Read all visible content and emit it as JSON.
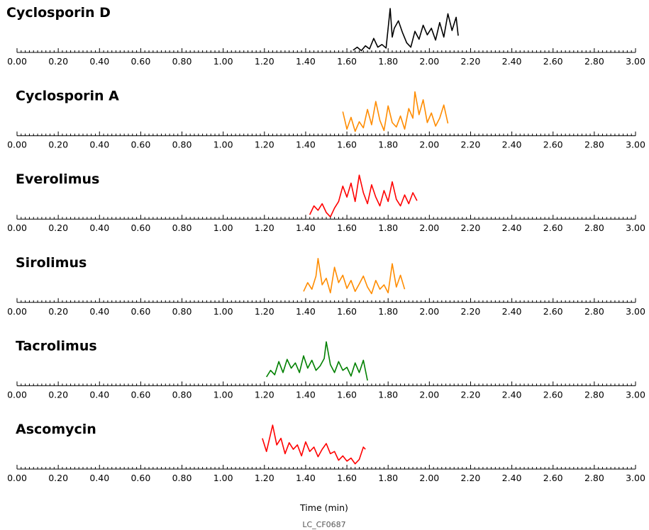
{
  "chart_data": {
    "type": "line",
    "title": "",
    "xlabel": "Time (min)",
    "footnote": "LC_CF0687",
    "xlim": [
      0.0,
      3.0
    ],
    "x_ticks": [
      "0.00",
      "0.20",
      "0.40",
      "0.60",
      "0.80",
      "1.00",
      "1.20",
      "1.40",
      "1.60",
      "1.80",
      "2.00",
      "2.20",
      "2.40",
      "2.60",
      "2.80",
      "3.00"
    ],
    "series": [
      {
        "name": "Cyclosporin D",
        "color": "#000000",
        "x": [
          1.63,
          1.65,
          1.67,
          1.69,
          1.71,
          1.73,
          1.75,
          1.77,
          1.79,
          1.81,
          1.82,
          1.83,
          1.85,
          1.87,
          1.89,
          1.91,
          1.93,
          1.95,
          1.97,
          1.99,
          2.01,
          2.03,
          2.05,
          2.07,
          2.09,
          2.11,
          2.13,
          2.14
        ],
        "y": [
          0.05,
          0.12,
          0.04,
          0.15,
          0.08,
          0.32,
          0.12,
          0.18,
          0.1,
          1.0,
          0.35,
          0.55,
          0.72,
          0.45,
          0.22,
          0.12,
          0.48,
          0.3,
          0.62,
          0.4,
          0.55,
          0.28,
          0.68,
          0.35,
          0.88,
          0.5,
          0.8,
          0.38
        ]
      },
      {
        "name": "Cyclosporin A",
        "color": "#ff8c00",
        "x": [
          1.58,
          1.6,
          1.62,
          1.64,
          1.66,
          1.68,
          1.7,
          1.72,
          1.74,
          1.76,
          1.78,
          1.8,
          1.82,
          1.84,
          1.86,
          1.88,
          1.9,
          1.92,
          1.93,
          1.95,
          1.97,
          1.99,
          2.01,
          2.03,
          2.05,
          2.07,
          2.09
        ],
        "y": [
          0.55,
          0.15,
          0.42,
          0.1,
          0.32,
          0.18,
          0.6,
          0.25,
          0.78,
          0.35,
          0.12,
          0.68,
          0.3,
          0.2,
          0.45,
          0.15,
          0.62,
          0.4,
          1.0,
          0.48,
          0.82,
          0.3,
          0.52,
          0.22,
          0.4,
          0.7,
          0.28
        ]
      },
      {
        "name": "Everolimus",
        "color": "#ff0000",
        "x": [
          1.42,
          1.44,
          1.46,
          1.48,
          1.5,
          1.52,
          1.54,
          1.56,
          1.58,
          1.6,
          1.62,
          1.64,
          1.66,
          1.68,
          1.7,
          1.72,
          1.74,
          1.76,
          1.78,
          1.8,
          1.82,
          1.84,
          1.86,
          1.88,
          1.9,
          1.92,
          1.94
        ],
        "y": [
          0.1,
          0.3,
          0.2,
          0.35,
          0.15,
          0.05,
          0.25,
          0.4,
          0.75,
          0.5,
          0.82,
          0.4,
          1.0,
          0.6,
          0.35,
          0.78,
          0.5,
          0.3,
          0.65,
          0.4,
          0.85,
          0.45,
          0.3,
          0.55,
          0.35,
          0.6,
          0.42
        ]
      },
      {
        "name": "Sirolimus",
        "color": "#ff8c00",
        "x": [
          1.39,
          1.41,
          1.43,
          1.45,
          1.46,
          1.48,
          1.5,
          1.52,
          1.54,
          1.56,
          1.58,
          1.6,
          1.62,
          1.64,
          1.66,
          1.68,
          1.7,
          1.72,
          1.74,
          1.76,
          1.78,
          1.8,
          1.82,
          1.84,
          1.86,
          1.88
        ],
        "y": [
          0.25,
          0.45,
          0.3,
          0.6,
          1.0,
          0.4,
          0.55,
          0.22,
          0.8,
          0.45,
          0.62,
          0.32,
          0.5,
          0.25,
          0.42,
          0.6,
          0.35,
          0.2,
          0.5,
          0.3,
          0.4,
          0.22,
          0.88,
          0.35,
          0.62,
          0.3
        ]
      },
      {
        "name": "Tacrolimus",
        "color": "#008000",
        "x": [
          1.21,
          1.23,
          1.25,
          1.27,
          1.29,
          1.31,
          1.33,
          1.35,
          1.37,
          1.39,
          1.41,
          1.43,
          1.45,
          1.47,
          1.49,
          1.5,
          1.52,
          1.54,
          1.56,
          1.58,
          1.6,
          1.62,
          1.64,
          1.66,
          1.68,
          1.7
        ],
        "y": [
          0.2,
          0.35,
          0.25,
          0.55,
          0.3,
          0.6,
          0.4,
          0.52,
          0.3,
          0.68,
          0.4,
          0.58,
          0.35,
          0.45,
          0.62,
          1.0,
          0.48,
          0.3,
          0.55,
          0.35,
          0.42,
          0.22,
          0.52,
          0.3,
          0.58,
          0.12
        ]
      },
      {
        "name": "Ascomycin",
        "color": "#ff0000",
        "x": [
          1.19,
          1.21,
          1.23,
          1.24,
          1.26,
          1.28,
          1.3,
          1.32,
          1.34,
          1.36,
          1.38,
          1.4,
          1.42,
          1.44,
          1.46,
          1.48,
          1.5,
          1.52,
          1.54,
          1.56,
          1.58,
          1.6,
          1.62,
          1.64,
          1.66,
          1.68,
          1.69
        ],
        "y": [
          0.7,
          0.4,
          0.8,
          1.0,
          0.55,
          0.7,
          0.35,
          0.6,
          0.45,
          0.55,
          0.3,
          0.62,
          0.4,
          0.5,
          0.28,
          0.45,
          0.58,
          0.35,
          0.4,
          0.2,
          0.3,
          0.18,
          0.25,
          0.12,
          0.22,
          0.5,
          0.45
        ]
      }
    ]
  }
}
